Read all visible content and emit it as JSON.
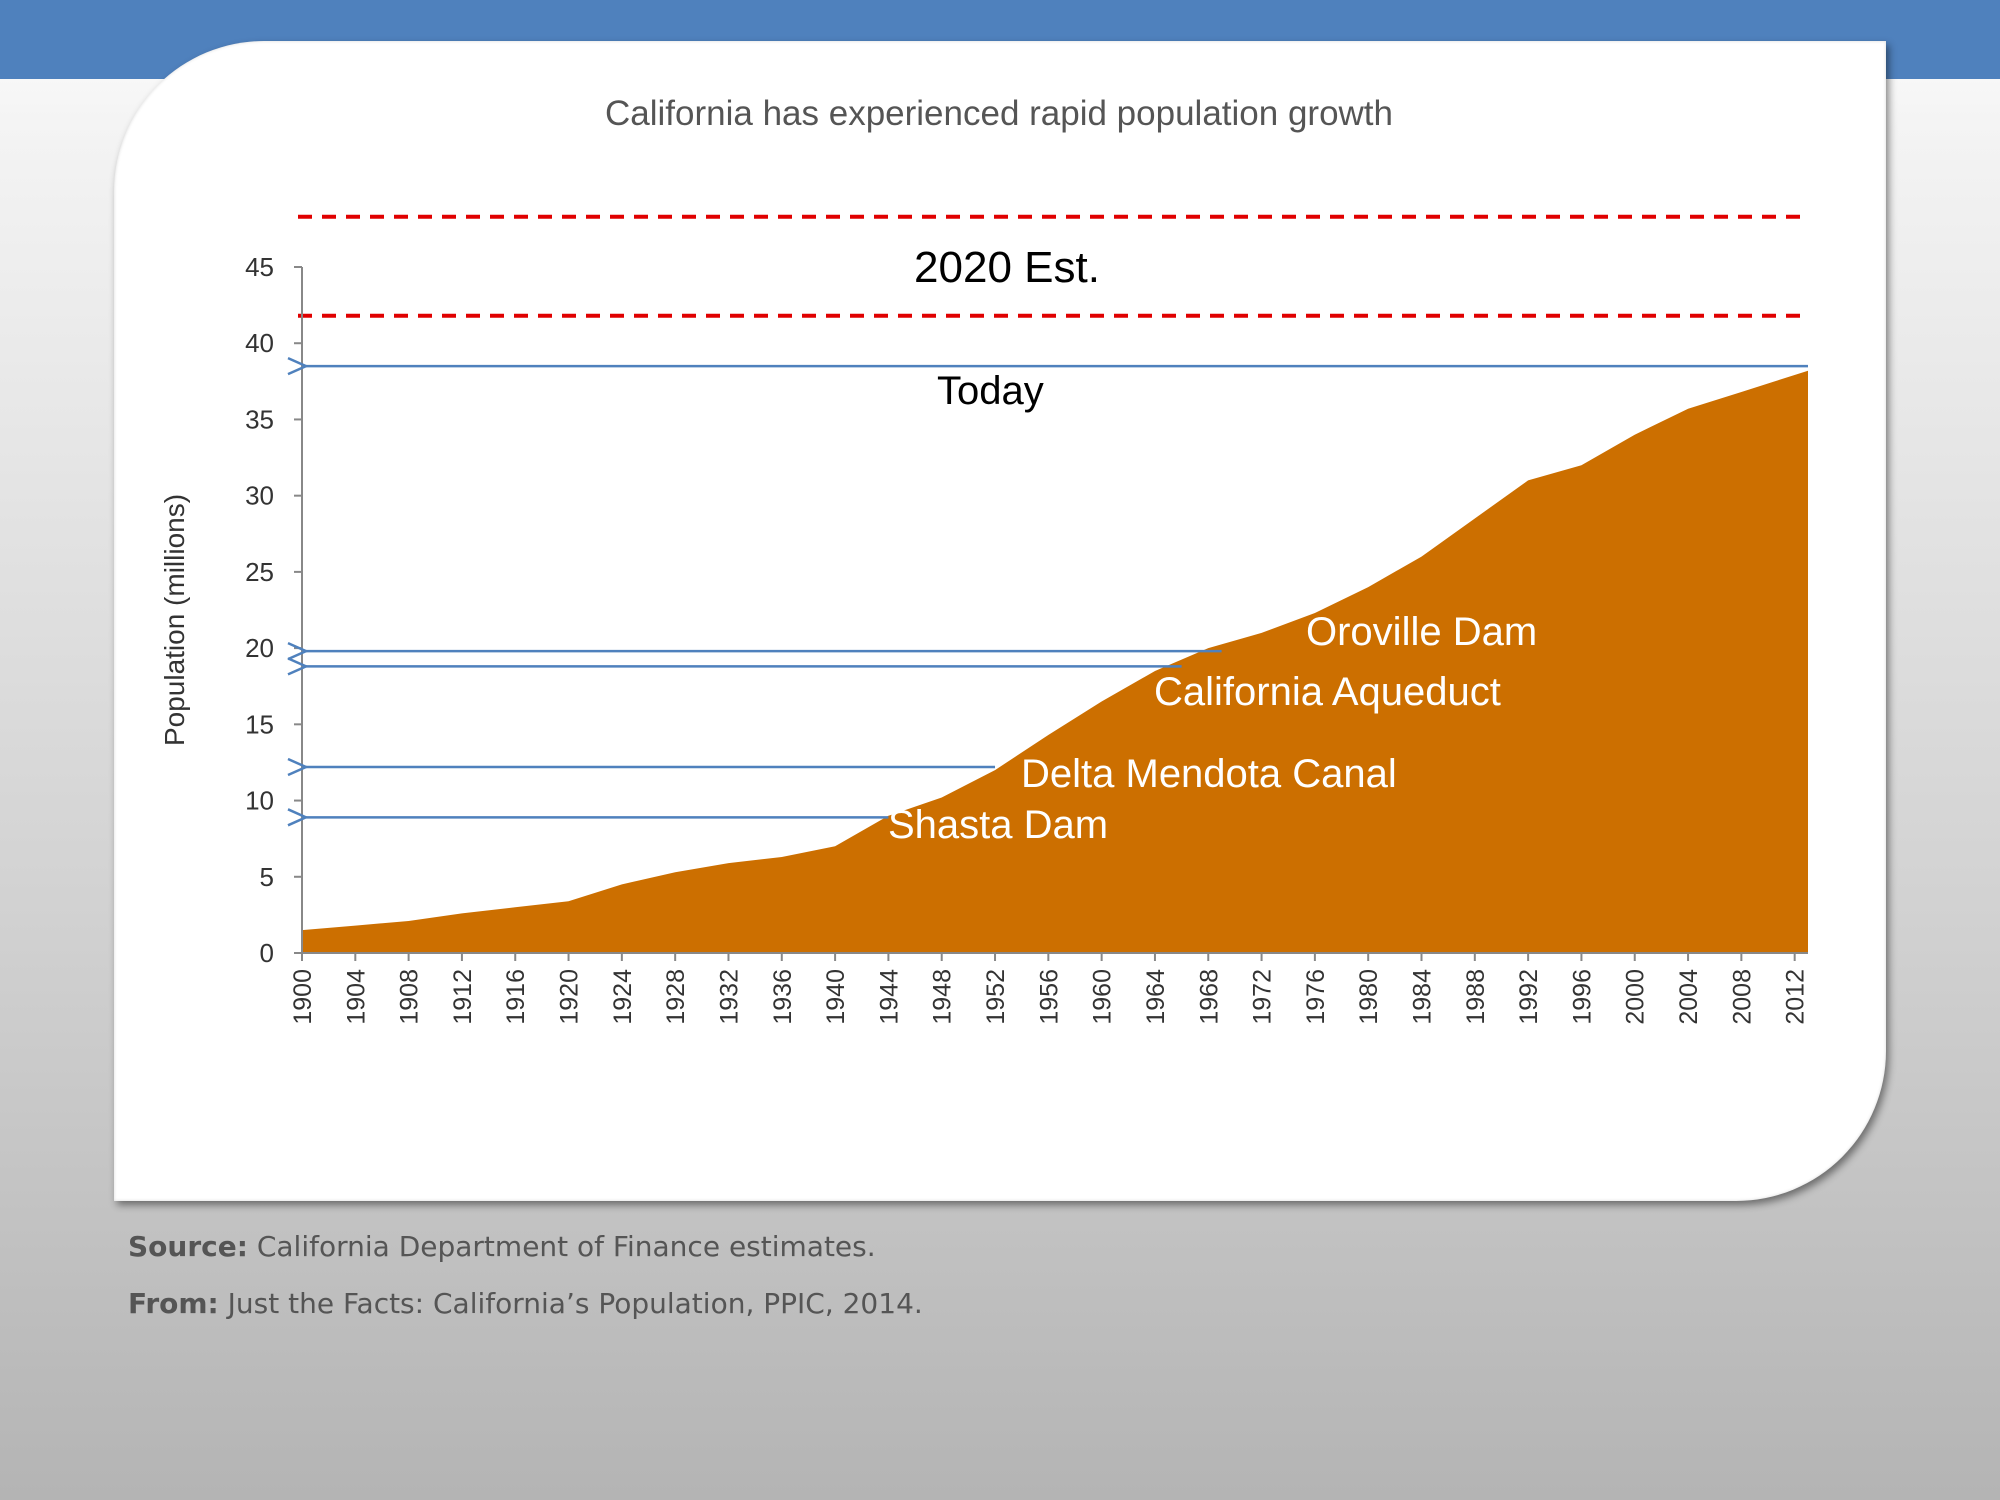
{
  "slide": {
    "caption": {
      "source_label": "Source:",
      "source_text": "California Department of Finance estimates.",
      "from_label": "From:",
      "from_text": "Just the Facts: California’s Population, PPIC, 2014."
    }
  },
  "colors": {
    "top_band": "#4f81bd",
    "area_fill": "#cc6f00",
    "arrow_lines": "#4f81bd",
    "dashed_lines": "#e00000"
  },
  "chart_data": {
    "type": "area",
    "title": "California has experienced rapid population growth",
    "xlabel": "",
    "ylabel": "Population (millions)",
    "ylim": [
      0,
      45
    ],
    "xlim": [
      1900,
      2013
    ],
    "y_ticks": [
      0,
      5,
      10,
      15,
      20,
      25,
      30,
      35,
      40,
      45
    ],
    "x_ticks": [
      1900,
      1904,
      1908,
      1912,
      1916,
      1920,
      1924,
      1928,
      1932,
      1936,
      1940,
      1944,
      1948,
      1952,
      1956,
      1960,
      1964,
      1968,
      1972,
      1976,
      1980,
      1984,
      1988,
      1992,
      1996,
      2000,
      2004,
      2008,
      2012
    ],
    "grid": false,
    "series": [
      {
        "name": "",
        "x": [
          1900,
          1904,
          1908,
          1912,
          1916,
          1920,
          1924,
          1928,
          1932,
          1936,
          1940,
          1944,
          1948,
          1952,
          1956,
          1960,
          1964,
          1968,
          1972,
          1976,
          1980,
          1984,
          1988,
          1992,
          1996,
          2000,
          2004,
          2008,
          2013
        ],
        "values": [
          1.5,
          1.8,
          2.1,
          2.6,
          3.0,
          3.4,
          4.5,
          5.3,
          5.9,
          6.3,
          7.0,
          9.0,
          10.2,
          12.0,
          14.3,
          16.5,
          18.5,
          20.0,
          21.0,
          22.3,
          24.0,
          26.0,
          28.5,
          31.0,
          32.0,
          34.0,
          35.7,
          36.8,
          38.2
        ]
      }
    ],
    "annotations": [
      {
        "label": "Shasta Dam",
        "y": 8.9,
        "x_from": 1944
      },
      {
        "label": "Delta Mendota Canal",
        "y": 12.2,
        "x_from": 1952
      },
      {
        "label": "California Aqueduct",
        "y": 18.8,
        "x_from": 1966
      },
      {
        "label": "Oroville Dam",
        "y": 19.8,
        "x_from": 1969
      },
      {
        "label": "Today",
        "y": 38.5,
        "x_from": 2013
      }
    ],
    "reference_band": {
      "label": "2020 Est.",
      "y_low": 41.8,
      "y_high": 48.3
    }
  }
}
